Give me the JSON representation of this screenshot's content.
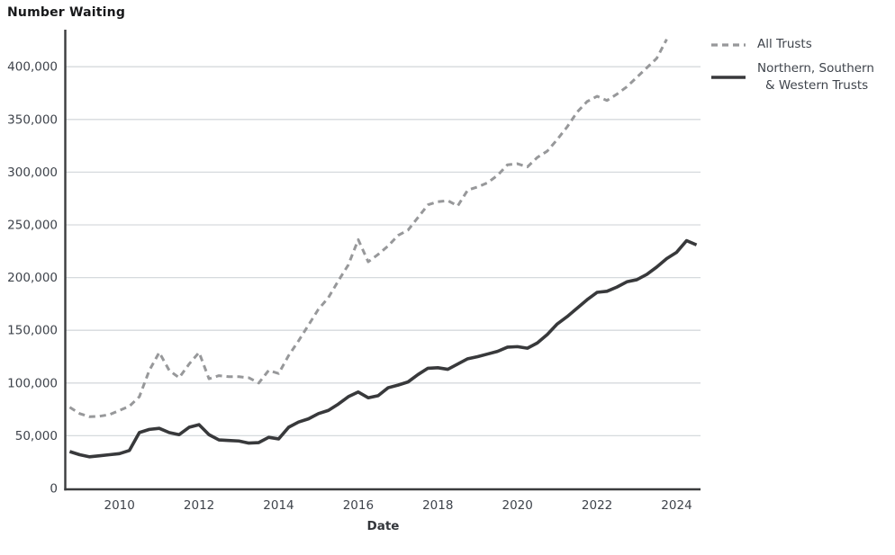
{
  "page": {
    "title": "Number Waiting"
  },
  "axis": {
    "x_title": "Date"
  },
  "legend": {
    "items": [
      {
        "key": "all-trusts",
        "style": "dashed",
        "color": "#97989a",
        "label_lines": [
          "All Trusts",
          ""
        ]
      },
      {
        "key": "nsw-trusts",
        "style": "solid",
        "color": "#38393b",
        "label_lines": [
          "Northern, Southern",
          "& Western Trusts"
        ]
      }
    ]
  },
  "colors": {
    "grid": "#d6dadd",
    "axis_line": "#3b3c3e",
    "tick_text": "#3e434b",
    "all_trusts": "#97989a",
    "nsw_trusts": "#38393b"
  },
  "chart_data": {
    "type": "line",
    "title": "Number Waiting",
    "xlabel": "Date",
    "ylabel": "Number Waiting",
    "grid": true,
    "legend_position": "right",
    "xlim": [
      2008.65,
      2024.6
    ],
    "ylim": [
      0,
      435000
    ],
    "yticks": [
      {
        "value": 0,
        "label": "0"
      },
      {
        "value": 50000,
        "label": "50,000"
      },
      {
        "value": 100000,
        "label": "100,000"
      },
      {
        "value": 150000,
        "label": "150,000"
      },
      {
        "value": 200000,
        "label": "200,000"
      },
      {
        "value": 250000,
        "label": "250,000"
      },
      {
        "value": 300000,
        "label": "300,000"
      },
      {
        "value": 350000,
        "label": "350,000"
      },
      {
        "value": 400000,
        "label": "400,000"
      }
    ],
    "xticks": [
      {
        "value": 2010,
        "label": "2010"
      },
      {
        "value": 2012,
        "label": "2012"
      },
      {
        "value": 2014,
        "label": "2014"
      },
      {
        "value": 2016,
        "label": "2016"
      },
      {
        "value": 2018,
        "label": "2018"
      },
      {
        "value": 2020,
        "label": "2020"
      },
      {
        "value": 2022,
        "label": "2022"
      },
      {
        "value": 2024,
        "label": "2024"
      }
    ],
    "series": [
      {
        "key": "all-trusts",
        "name": "All Trusts",
        "style": "dashed",
        "color": "#97989a",
        "x": [
          2008.75,
          2009.0,
          2009.25,
          2009.5,
          2009.75,
          2010.0,
          2010.25,
          2010.5,
          2010.75,
          2011.0,
          2011.25,
          2011.5,
          2011.75,
          2012.0,
          2012.25,
          2012.5,
          2012.75,
          2013.0,
          2013.25,
          2013.5,
          2013.75,
          2014.0,
          2014.25,
          2014.5,
          2014.75,
          2015.0,
          2015.25,
          2015.5,
          2015.75,
          2016.0,
          2016.25,
          2016.5,
          2016.75,
          2017.0,
          2017.25,
          2017.5,
          2017.75,
          2018.0,
          2018.25,
          2018.5,
          2018.75,
          2019.0,
          2019.25,
          2019.5,
          2019.75,
          2020.0,
          2020.25,
          2020.5,
          2020.75,
          2021.0,
          2021.25,
          2021.5,
          2021.75,
          2022.0,
          2022.25,
          2022.5,
          2022.75,
          2023.0,
          2023.25,
          2023.5,
          2023.75
        ],
        "values": [
          77000,
          71000,
          68000,
          68500,
          70000,
          74000,
          78000,
          87000,
          112000,
          129000,
          112000,
          105000,
          118000,
          129000,
          104000,
          107000,
          106000,
          106000,
          105000,
          100000,
          112000,
          109000,
          126000,
          140000,
          155000,
          170000,
          181000,
          197000,
          212000,
          236000,
          215000,
          222000,
          230000,
          240000,
          245000,
          257000,
          269000,
          272000,
          273000,
          268000,
          283000,
          286000,
          290000,
          297000,
          307000,
          308000,
          305000,
          314000,
          320000,
          331000,
          343000,
          357000,
          367000,
          372000,
          368000,
          374000,
          381000,
          390000,
          399000,
          408000,
          426000
        ]
      },
      {
        "key": "nsw-trusts",
        "name": "Northern, Southern & Western Trusts",
        "style": "solid",
        "color": "#38393b",
        "x": [
          2008.75,
          2009.0,
          2009.25,
          2009.5,
          2009.75,
          2010.0,
          2010.25,
          2010.5,
          2010.75,
          2011.0,
          2011.25,
          2011.5,
          2011.75,
          2012.0,
          2012.25,
          2012.5,
          2012.75,
          2013.0,
          2013.25,
          2013.5,
          2013.75,
          2014.0,
          2014.25,
          2014.5,
          2014.75,
          2015.0,
          2015.25,
          2015.5,
          2015.75,
          2016.0,
          2016.25,
          2016.5,
          2016.75,
          2017.0,
          2017.25,
          2017.5,
          2017.75,
          2018.0,
          2018.25,
          2018.5,
          2018.75,
          2019.0,
          2019.25,
          2019.5,
          2019.75,
          2020.0,
          2020.25,
          2020.5,
          2020.75,
          2021.0,
          2021.25,
          2021.5,
          2021.75,
          2022.0,
          2022.25,
          2022.5,
          2022.75,
          2023.0,
          2023.25,
          2023.5,
          2023.75,
          2024.0,
          2024.25,
          2024.5
        ],
        "values": [
          35000,
          32000,
          30000,
          31000,
          32000,
          33000,
          36000,
          53000,
          56000,
          57000,
          53000,
          51000,
          58000,
          60500,
          51000,
          46000,
          45500,
          45000,
          43000,
          43500,
          48500,
          47000,
          58000,
          63000,
          66000,
          71000,
          74000,
          80000,
          87000,
          91500,
          86000,
          88000,
          95500,
          98000,
          101000,
          108000,
          114000,
          114500,
          113000,
          118000,
          123000,
          125000,
          127500,
          130000,
          134000,
          134500,
          133000,
          138000,
          146000,
          156000,
          163000,
          171000,
          179000,
          186000,
          187000,
          191000,
          196000,
          198000,
          203000,
          210000,
          218000,
          224000,
          235000,
          231000
        ]
      }
    ]
  }
}
